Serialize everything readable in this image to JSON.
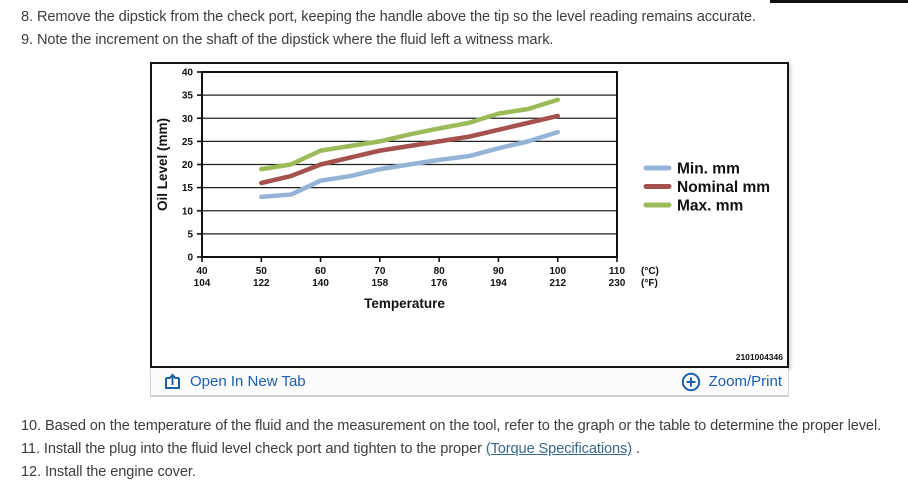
{
  "steps_top": [
    {
      "num": "8.",
      "parts": [
        {
          "text": "Remove the dipstick from the check port, keeping the handle above the tip so the level reading remains accurate."
        }
      ]
    },
    {
      "num": "9.",
      "parts": [
        {
          "text": "Note the increment on the shaft of the dipstick where the fluid left a witness mark."
        }
      ]
    }
  ],
  "steps_bottom": [
    {
      "num": "10.",
      "parts": [
        {
          "text": "Based on the temperature of the fluid and the measurement on the tool, refer to the graph or the table to determine the proper level."
        }
      ]
    },
    {
      "num": "11.",
      "parts": [
        {
          "text": "Install the plug into the fluid level check port and tighten to the proper "
        },
        {
          "text": "(Torque Specifications)",
          "link": true,
          "link_name": "torque-specifications-link"
        },
        {
          "text": " ."
        }
      ]
    },
    {
      "num": "12.",
      "parts": [
        {
          "text": "Install the engine cover."
        }
      ]
    }
  ],
  "figure": {
    "id_number": "2101004346",
    "toolbar": {
      "open_label": "Open In New Tab",
      "open_icon": "open-in-new-tab-icon",
      "zoom_label": "Zoom/Print",
      "zoom_icon": "zoom-print-icon"
    }
  },
  "chart_data": {
    "type": "line",
    "xlabel": "Temperature",
    "ylabel": "Oil Level (mm)",
    "xlim": [
      40,
      110
    ],
    "ylim": [
      0,
      40
    ],
    "x_ticks_c": [
      40,
      50,
      60,
      70,
      80,
      90,
      100,
      110
    ],
    "x_ticks_f": [
      104,
      122,
      140,
      158,
      176,
      194,
      212,
      230
    ],
    "x_unit_labels": [
      "(°C)",
      "(°F)"
    ],
    "y_ticks": [
      0,
      5,
      10,
      15,
      20,
      25,
      30,
      35,
      40
    ],
    "grid": "horizontal",
    "legend_position": "right",
    "x": [
      50,
      55,
      60,
      65,
      70,
      75,
      80,
      85,
      90,
      95,
      100
    ],
    "series": [
      {
        "name": "Min. mm",
        "color": "#95B3D7",
        "values": [
          13,
          13.5,
          16.5,
          17.5,
          19,
          20,
          21,
          21.8,
          23.5,
          25,
          27
        ]
      },
      {
        "name": "Nominal mm",
        "color": "#A5514D",
        "values": [
          16,
          17.5,
          20,
          21.5,
          23,
          24,
          25,
          26,
          27.5,
          29,
          30.5
        ]
      },
      {
        "name": "Max. mm",
        "color": "#9BBB59",
        "values": [
          19,
          20,
          23,
          24,
          25,
          26.5,
          27.8,
          29,
          31,
          32,
          34
        ]
      }
    ]
  },
  "colors": {
    "body_text": "#3d3d3d",
    "toolbar_blue": "#1B5EAD",
    "link_blue": "#35688C",
    "chart_border": "#161616"
  }
}
